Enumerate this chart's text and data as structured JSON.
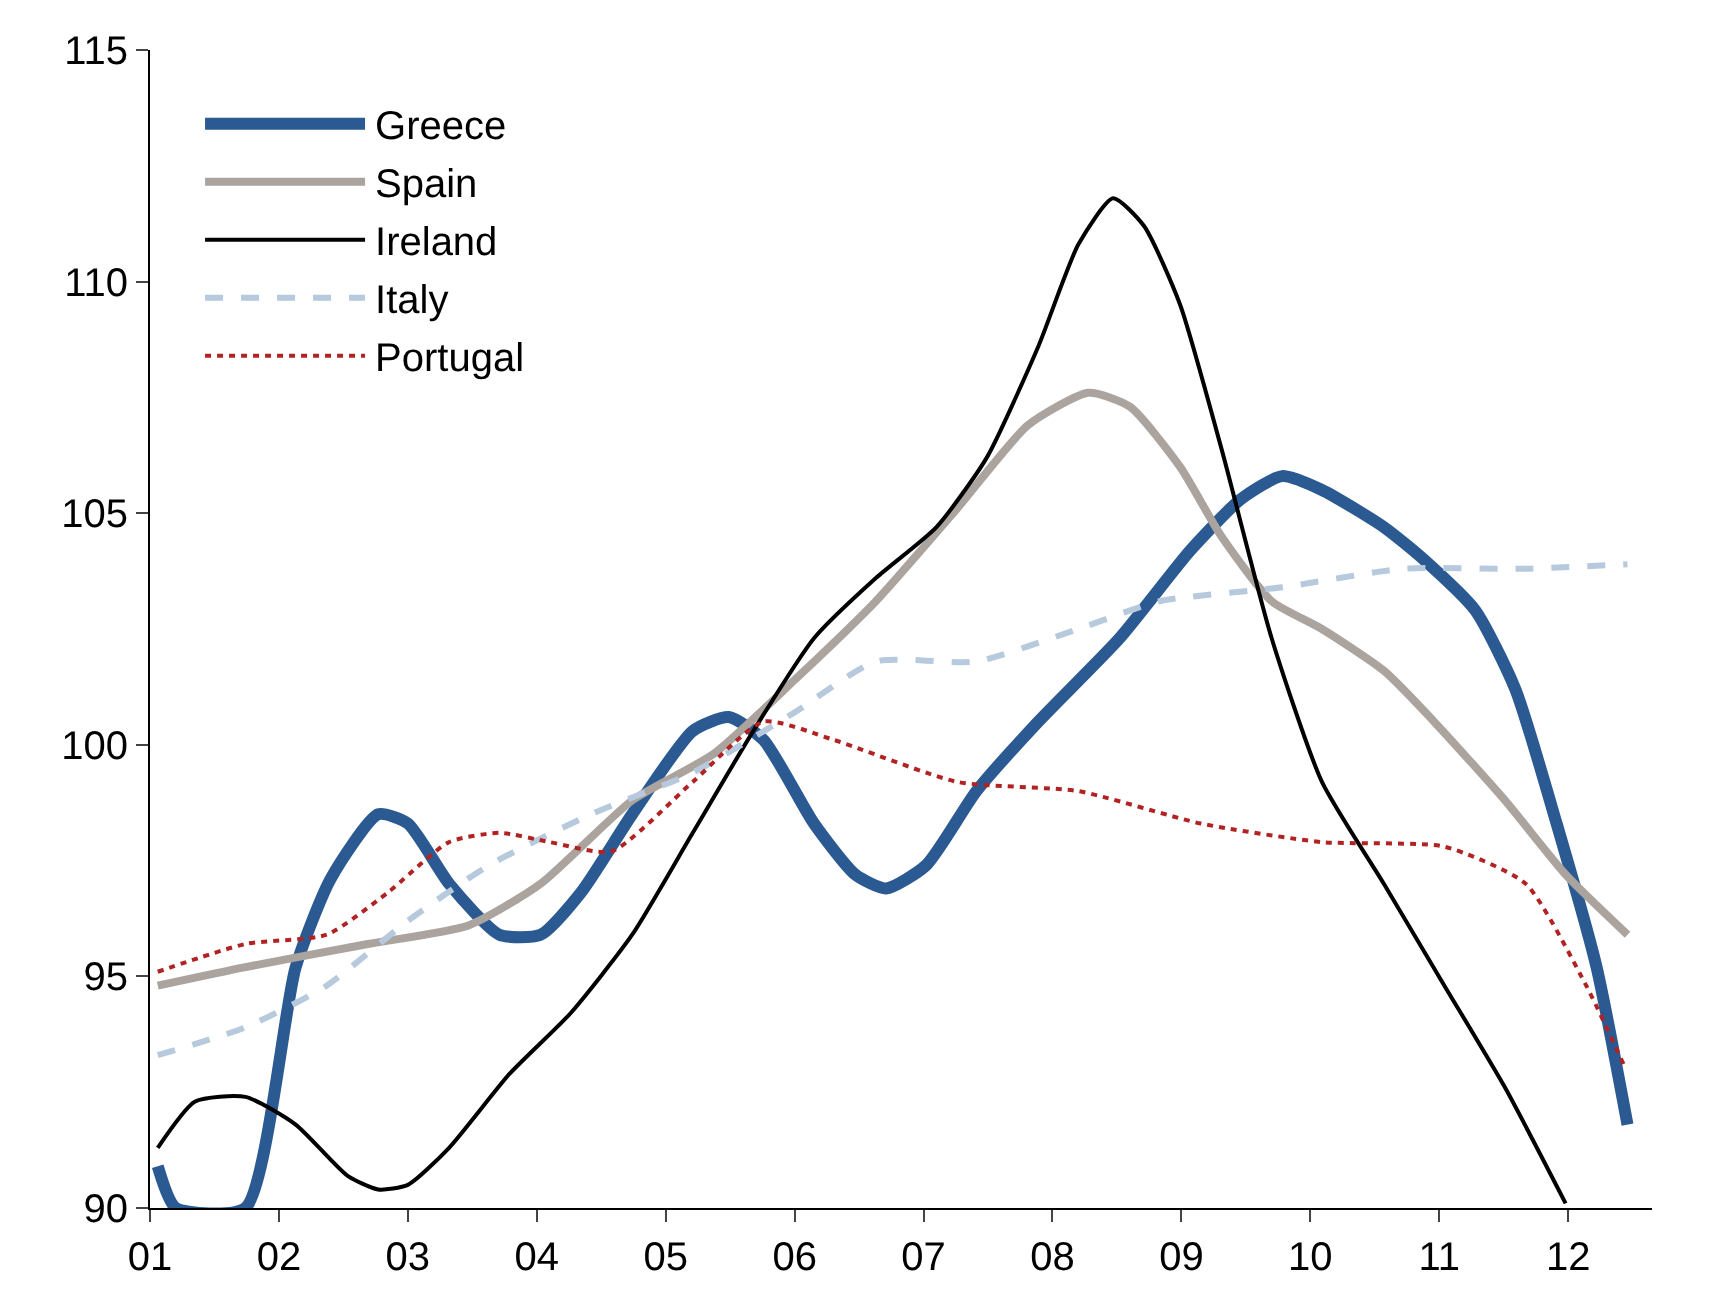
{
  "chart_data": {
    "type": "line",
    "xlim": [
      1,
      12.65
    ],
    "ylim": [
      90,
      115
    ],
    "xticks": [
      {
        "value": 1,
        "label": "01"
      },
      {
        "value": 2,
        "label": "02"
      },
      {
        "value": 3,
        "label": "03"
      },
      {
        "value": 4,
        "label": "04"
      },
      {
        "value": 5,
        "label": "05"
      },
      {
        "value": 6,
        "label": "06"
      },
      {
        "value": 7,
        "label": "07"
      },
      {
        "value": 8,
        "label": "08"
      },
      {
        "value": 9,
        "label": "09"
      },
      {
        "value": 10,
        "label": "10"
      },
      {
        "value": 11,
        "label": "11"
      },
      {
        "value": 12,
        "label": "12"
      }
    ],
    "yticks": [
      90,
      95,
      100,
      105,
      110,
      115
    ],
    "grid": false,
    "legend": "top left",
    "marker": "none",
    "series": [
      {
        "name": "Greece",
        "color": "#2b5a92",
        "line_style": "solid",
        "x": [
          1.06,
          1.2,
          1.74,
          2.13,
          2.4,
          2.77,
          3.0,
          3.32,
          3.71,
          4.03,
          4.34,
          4.74,
          5.21,
          5.49,
          5.76,
          6.15,
          6.47,
          6.71,
          7.02,
          7.41,
          7.89,
          8.52,
          9.07,
          9.46,
          9.78,
          10.09,
          10.57,
          10.88,
          11.28,
          11.59,
          11.91,
          12.22,
          12.46
        ],
        "values": [
          90.9,
          90.0,
          90.0,
          95.2,
          97.1,
          98.5,
          98.3,
          97.0,
          95.9,
          95.9,
          96.8,
          98.5,
          100.3,
          100.6,
          100.1,
          98.3,
          97.2,
          96.9,
          97.4,
          99.0,
          100.5,
          102.3,
          104.2,
          105.3,
          105.8,
          105.5,
          104.7,
          104.0,
          102.9,
          101.2,
          98.3,
          95.2,
          91.8
        ]
      },
      {
        "name": "Spain",
        "color": "#aaa39e",
        "line_style": "solid",
        "x": [
          1.06,
          1.74,
          2.69,
          3.47,
          4.03,
          4.74,
          5.37,
          6.0,
          6.63,
          7.26,
          7.81,
          8.28,
          8.6,
          8.99,
          9.31,
          9.7,
          10.09,
          10.57,
          10.96,
          11.51,
          11.98,
          12.46
        ],
        "values": [
          94.8,
          95.2,
          95.7,
          96.1,
          97.0,
          98.8,
          99.8,
          101.4,
          103.1,
          105.1,
          106.9,
          107.6,
          107.3,
          106.0,
          104.5,
          103.1,
          102.5,
          101.6,
          100.5,
          98.8,
          97.2,
          95.9
        ]
      },
      {
        "name": "Ireland",
        "color": "#000000",
        "line_style": "solid",
        "x": [
          1.06,
          1.35,
          1.74,
          2.13,
          2.53,
          2.77,
          3.0,
          3.32,
          3.79,
          4.26,
          4.74,
          5.21,
          5.68,
          6.15,
          6.63,
          7.1,
          7.49,
          7.89,
          8.2,
          8.47,
          8.71,
          8.99,
          9.31,
          9.7,
          10.09,
          10.57,
          11.04,
          11.51,
          11.98
        ],
        "values": [
          91.3,
          92.3,
          92.4,
          91.8,
          90.7,
          90.4,
          90.5,
          91.3,
          92.9,
          94.2,
          95.9,
          98.1,
          100.3,
          102.3,
          103.6,
          104.7,
          106.2,
          108.6,
          110.8,
          111.8,
          111.2,
          109.5,
          106.4,
          102.3,
          99.2,
          97.0,
          94.8,
          92.6,
          90.1
        ]
      },
      {
        "name": "Italy",
        "color": "#b7c9dc",
        "line_style": "dashed",
        "x": [
          1.06,
          1.74,
          2.37,
          3.0,
          3.63,
          4.42,
          5.21,
          6.0,
          6.63,
          7.41,
          8.2,
          8.83,
          9.78,
          10.72,
          11.67,
          12.46
        ],
        "values": [
          93.3,
          93.9,
          94.8,
          96.2,
          97.4,
          98.5,
          99.4,
          100.7,
          101.8,
          101.8,
          102.5,
          103.1,
          103.4,
          103.8,
          103.8,
          103.9
        ]
      },
      {
        "name": "Portugal",
        "color": "#b22222",
        "line_style": "dotted",
        "x": [
          1.06,
          1.74,
          2.37,
          2.84,
          3.32,
          3.71,
          4.1,
          4.58,
          5.21,
          5.76,
          6.31,
          7.26,
          8.2,
          9.15,
          10.09,
          11.04,
          11.67,
          12.14,
          12.43
        ],
        "values": [
          95.1,
          95.7,
          95.9,
          96.8,
          97.9,
          98.1,
          97.9,
          97.7,
          99.2,
          100.5,
          100.1,
          99.2,
          99.0,
          98.3,
          97.9,
          97.8,
          97.0,
          94.8,
          93.1
        ]
      }
    ]
  }
}
